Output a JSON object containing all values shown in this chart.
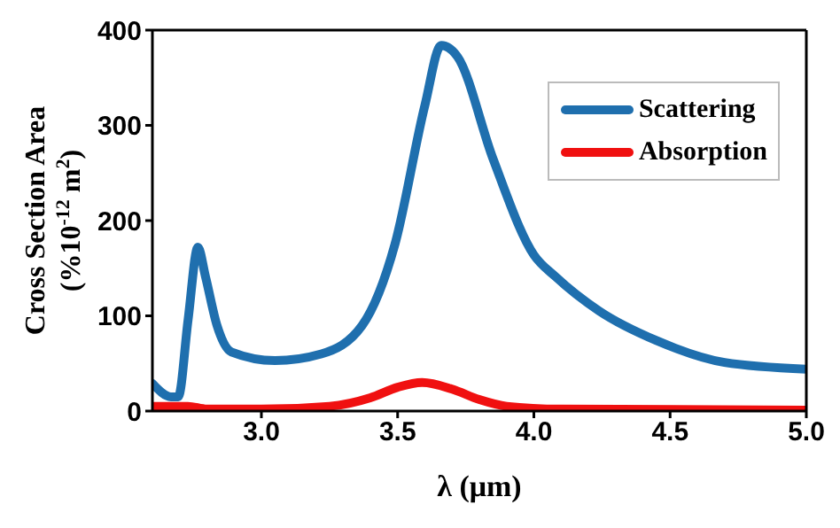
{
  "chart_data": {
    "type": "line",
    "xlabel": "λ (μm)",
    "ylabel": "Cross Section Area\n(%10$^{-12}$ m$^{2}$)",
    "xlim": [
      2.6,
      5.0
    ],
    "xticks": [
      {
        "value": 3.0,
        "label": "3.0"
      },
      {
        "value": 3.5,
        "label": "3.5"
      },
      {
        "value": 4.0,
        "label": "4.0"
      },
      {
        "value": 4.5,
        "label": "4.5"
      },
      {
        "value": 5.0,
        "label": "5.0"
      }
    ],
    "ylim": [
      0,
      400
    ],
    "yticks": [
      0,
      100,
      200,
      300,
      400
    ],
    "legend": "top right",
    "line_style": "solid",
    "marker": "none",
    "series": [
      {
        "name": "Scattering",
        "color": "#1f6fae",
        "x": [
          2.6,
          2.668,
          2.695,
          2.731,
          2.767,
          2.795,
          2.837,
          2.89,
          3.05,
          3.22,
          3.37,
          3.49,
          3.6,
          3.66,
          3.72,
          3.85,
          4.0,
          4.08,
          4.24,
          4.45,
          4.7,
          5.0
        ],
        "values": [
          29,
          15,
          15,
          96,
          172,
          141,
          90,
          62,
          53,
          60,
          90,
          175,
          321,
          384,
          372,
          265,
          164,
          141,
          105,
          74,
          51,
          44
        ]
      },
      {
        "name": "Absorption",
        "color": "#f01010",
        "x": [
          2.6,
          2.73,
          2.8,
          3.0,
          3.25,
          3.4,
          3.5,
          3.59,
          3.7,
          3.8,
          3.9,
          4.1,
          5.0
        ],
        "values": [
          5,
          5,
          2,
          2,
          5,
          14,
          25,
          30,
          23,
          12,
          5,
          2,
          1
        ]
      }
    ]
  }
}
